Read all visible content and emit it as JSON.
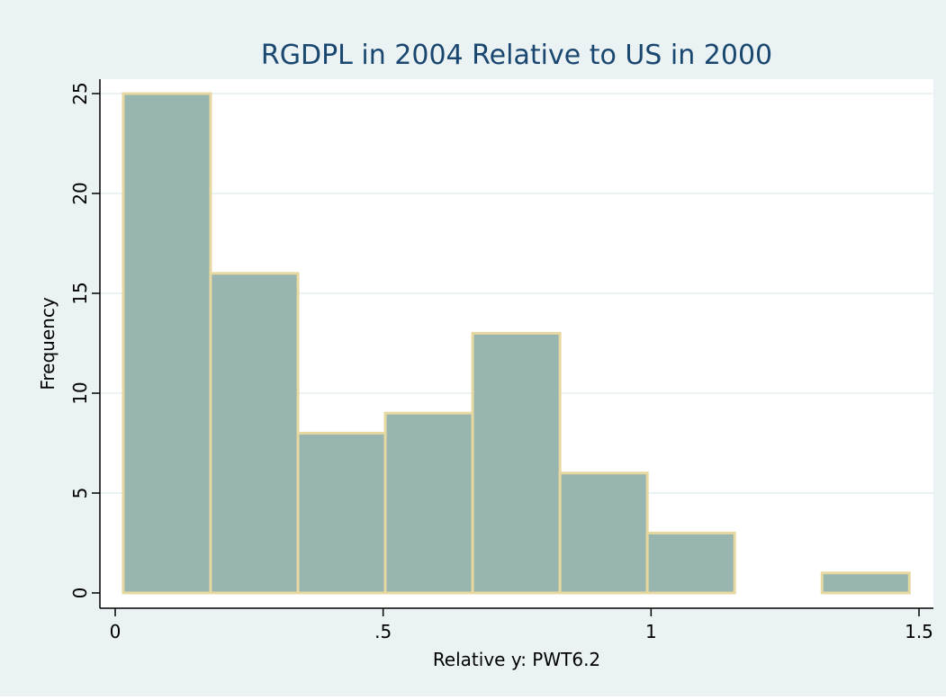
{
  "colors": {
    "background": "#eaf2f3",
    "plot_area": "#ffffff",
    "bar_fill": "#98b5b0",
    "bar_outline": "#e6d8a0",
    "grid": "#eaf2f3",
    "title": "#1a476f",
    "axis": "#000000"
  },
  "chart_data": {
    "type": "bar",
    "histogram": true,
    "title": "RGDPL in 2004 Relative to US in 2000",
    "xlabel": "Relative y: PWT6.2",
    "ylabel": "Frequency",
    "xlim": [
      0,
      1.5
    ],
    "ylim": [
      0,
      25
    ],
    "grid": true,
    "x_ticks": [
      0,
      0.5,
      1,
      1.5
    ],
    "x_tick_labels": [
      "0",
      ".5",
      "1",
      "1.5"
    ],
    "y_ticks": [
      0,
      5,
      10,
      15,
      20,
      25
    ],
    "y_tick_labels": [
      "0",
      "5",
      "10",
      "15",
      "20",
      "25"
    ],
    "bins": [
      {
        "x0": 0.015,
        "x1": 0.178,
        "value": 25
      },
      {
        "x0": 0.178,
        "x1": 0.341,
        "value": 16
      },
      {
        "x0": 0.341,
        "x1": 0.504,
        "value": 8
      },
      {
        "x0": 0.504,
        "x1": 0.667,
        "value": 9
      },
      {
        "x0": 0.667,
        "x1": 0.83,
        "value": 13
      },
      {
        "x0": 0.83,
        "x1": 0.993,
        "value": 6
      },
      {
        "x0": 0.993,
        "x1": 1.156,
        "value": 3
      },
      {
        "x0": 1.156,
        "x1": 1.319,
        "value": 0
      },
      {
        "x0": 1.319,
        "x1": 1.482,
        "value": 1
      }
    ]
  }
}
